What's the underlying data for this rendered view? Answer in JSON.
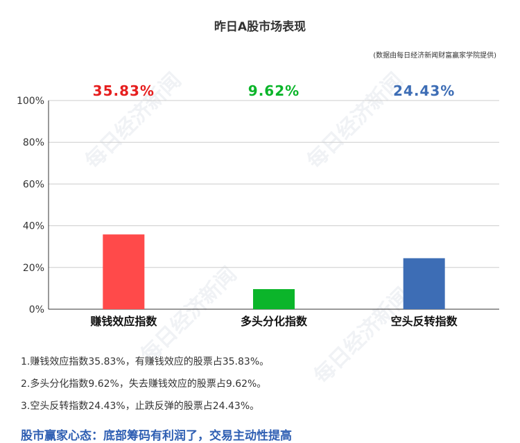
{
  "title": "昨日A股市场表现",
  "source": "(数据由每日经济新闻财富赢家学院提供)",
  "watermark": "每日经济新闻",
  "chart_data": {
    "type": "bar",
    "categories": [
      "赚钱效应指数",
      "多头分化指数",
      "空头反转指数"
    ],
    "values": [
      35.83,
      9.62,
      24.43
    ],
    "value_labels": [
      "35.83%",
      "9.62%",
      "24.43%"
    ],
    "colors": [
      "#ff4a4a",
      "#0bb52a",
      "#3d6db5"
    ],
    "label_colors": [
      "#e61e1e",
      "#0bb52a",
      "#3d6db5"
    ],
    "ylim": [
      0,
      100
    ],
    "yticks": [
      "0%",
      "20%",
      "40%",
      "60%",
      "80%",
      "100%"
    ],
    "grid": true
  },
  "notes": [
    "1.赚钱效应指数35.83%，有赚钱效应的股票占35.83%。",
    "2.多头分化指数9.62%，失去赚钱效应的股票占9.62%。",
    "3.空头反转指数24.43%，止跌反弹的股票占24.43%。"
  ],
  "headline": "股市赢家心态：底部筹码有利润了，交易主动性提高"
}
